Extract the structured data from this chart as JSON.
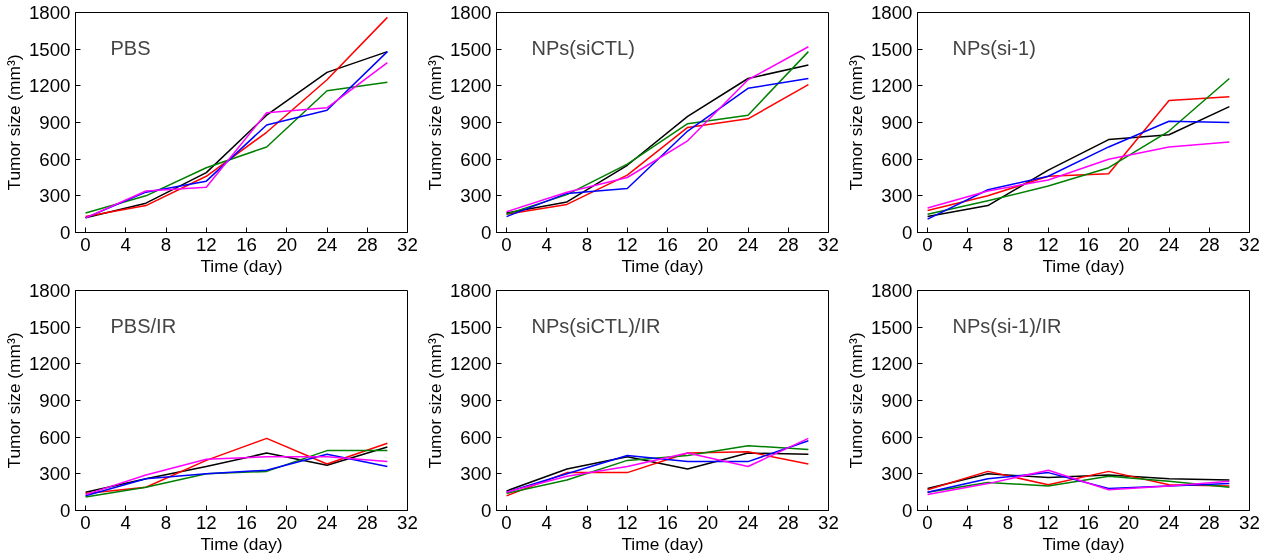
{
  "chart_data": [
    {
      "type": "line",
      "title": "PBS",
      "xlabel": "Time (day)",
      "ylabel": "Tumor size (mm³)",
      "x": [
        0,
        6,
        12,
        18,
        24,
        30
      ],
      "xlim": [
        -1,
        32
      ],
      "xticks": [
        0,
        4,
        8,
        12,
        16,
        20,
        24,
        28,
        32
      ],
      "ylim": [
        0,
        1800
      ],
      "yticks": [
        0,
        300,
        600,
        900,
        1200,
        1500,
        1800
      ],
      "grid": false,
      "series": [
        {
          "color": "#000000",
          "values": [
            120,
            240,
            490,
            960,
            1310,
            1480
          ]
        },
        {
          "color": "#ff0000",
          "values": [
            130,
            220,
            460,
            820,
            1250,
            1760
          ]
        },
        {
          "color": "#008000",
          "values": [
            160,
            300,
            530,
            700,
            1160,
            1230
          ]
        },
        {
          "color": "#0000ff",
          "values": [
            120,
            330,
            420,
            880,
            1000,
            1480
          ]
        },
        {
          "color": "#ff00ff",
          "values": [
            120,
            340,
            370,
            980,
            1020,
            1390
          ]
        }
      ]
    },
    {
      "type": "line",
      "title": "NPs(siCTL)",
      "xlabel": "Time (day)",
      "ylabel": "Tumor size (mm³)",
      "x": [
        0,
        6,
        12,
        18,
        24,
        30
      ],
      "xlim": [
        -1,
        32
      ],
      "xticks": [
        0,
        4,
        8,
        12,
        16,
        20,
        24,
        28,
        32
      ],
      "ylim": [
        0,
        1800
      ],
      "yticks": [
        0,
        300,
        600,
        900,
        1200,
        1500,
        1800
      ],
      "grid": false,
      "series": [
        {
          "color": "#000000",
          "values": [
            160,
            250,
            550,
            950,
            1260,
            1370
          ]
        },
        {
          "color": "#ff0000",
          "values": [
            150,
            230,
            470,
            860,
            930,
            1210
          ]
        },
        {
          "color": "#008000",
          "values": [
            150,
            310,
            560,
            890,
            960,
            1480
          ]
        },
        {
          "color": "#0000ff",
          "values": [
            130,
            320,
            360,
            830,
            1180,
            1260
          ]
        },
        {
          "color": "#ff00ff",
          "values": [
            170,
            330,
            450,
            750,
            1250,
            1520
          ]
        }
      ]
    },
    {
      "type": "line",
      "title": "NPs(si-1)",
      "xlabel": "Time (day)",
      "ylabel": "Tumor size (mm³)",
      "x": [
        0,
        6,
        12,
        18,
        24,
        30
      ],
      "xlim": [
        -1,
        32
      ],
      "xticks": [
        0,
        4,
        8,
        12,
        16,
        20,
        24,
        28,
        32
      ],
      "ylim": [
        0,
        1800
      ],
      "yticks": [
        0,
        300,
        600,
        900,
        1200,
        1500,
        1800
      ],
      "grid": false,
      "series": [
        {
          "color": "#000000",
          "values": [
            130,
            220,
            510,
            760,
            800,
            1030
          ]
        },
        {
          "color": "#ff0000",
          "values": [
            180,
            300,
            460,
            480,
            1080,
            1110
          ]
        },
        {
          "color": "#008000",
          "values": [
            150,
            260,
            380,
            530,
            830,
            1260
          ]
        },
        {
          "color": "#0000ff",
          "values": [
            110,
            350,
            460,
            700,
            910,
            900
          ]
        },
        {
          "color": "#ff00ff",
          "values": [
            200,
            340,
            430,
            600,
            700,
            740
          ]
        }
      ]
    },
    {
      "type": "line",
      "title": "PBS/IR",
      "xlabel": "Time (day)",
      "ylabel": "Tumor size (mm³)",
      "x": [
        0,
        6,
        12,
        18,
        24,
        30
      ],
      "xlim": [
        -1,
        32
      ],
      "xticks": [
        0,
        4,
        8,
        12,
        16,
        20,
        24,
        28,
        32
      ],
      "ylim": [
        0,
        1800
      ],
      "yticks": [
        0,
        300,
        600,
        900,
        1200,
        1500,
        1800
      ],
      "grid": false,
      "series": [
        {
          "color": "#000000",
          "values": [
            150,
            260,
            360,
            470,
            370,
            520
          ]
        },
        {
          "color": "#ff0000",
          "values": [
            140,
            190,
            410,
            590,
            380,
            550
          ]
        },
        {
          "color": "#008000",
          "values": [
            110,
            190,
            300,
            320,
            490,
            490
          ]
        },
        {
          "color": "#0000ff",
          "values": [
            120,
            260,
            300,
            330,
            460,
            360
          ]
        },
        {
          "color": "#ff00ff",
          "values": [
            130,
            290,
            420,
            440,
            440,
            400
          ]
        }
      ]
    },
    {
      "type": "line",
      "title": "NPs(siCTL)/IR",
      "xlabel": "Time (day)",
      "ylabel": "Tumor size (mm³)",
      "x": [
        0,
        6,
        12,
        18,
        24,
        30
      ],
      "xlim": [
        -1,
        32
      ],
      "xticks": [
        0,
        4,
        8,
        12,
        16,
        20,
        24,
        28,
        32
      ],
      "ylim": [
        0,
        1800
      ],
      "yticks": [
        0,
        300,
        600,
        900,
        1200,
        1500,
        1800
      ],
      "grid": false,
      "series": [
        {
          "color": "#000000",
          "values": [
            160,
            340,
            440,
            340,
            470,
            460
          ]
        },
        {
          "color": "#ff0000",
          "values": [
            120,
            310,
            310,
            470,
            480,
            380
          ]
        },
        {
          "color": "#008000",
          "values": [
            140,
            250,
            410,
            450,
            530,
            500
          ]
        },
        {
          "color": "#0000ff",
          "values": [
            150,
            300,
            450,
            400,
            400,
            570
          ]
        },
        {
          "color": "#ff00ff",
          "values": [
            150,
            280,
            360,
            470,
            360,
            590
          ]
        }
      ]
    },
    {
      "type": "line",
      "title": "NPs(si-1)/IR",
      "xlabel": "Time (day)",
      "ylabel": "Tumor size (mm³)",
      "x": [
        0,
        6,
        12,
        18,
        24,
        30
      ],
      "xlim": [
        -1,
        32
      ],
      "xticks": [
        0,
        4,
        8,
        12,
        16,
        20,
        24,
        28,
        32
      ],
      "ylim": [
        0,
        1800
      ],
      "yticks": [
        0,
        300,
        600,
        900,
        1200,
        1500,
        1800
      ],
      "grid": false,
      "series": [
        {
          "color": "#000000",
          "values": [
            180,
            300,
            270,
            290,
            260,
            250
          ]
        },
        {
          "color": "#ff0000",
          "values": [
            170,
            320,
            210,
            320,
            210,
            200
          ]
        },
        {
          "color": "#008000",
          "values": [
            150,
            230,
            200,
            280,
            240,
            190
          ]
        },
        {
          "color": "#0000ff",
          "values": [
            150,
            260,
            310,
            180,
            200,
            220
          ]
        },
        {
          "color": "#ff00ff",
          "values": [
            130,
            220,
            330,
            170,
            200,
            240
          ]
        }
      ]
    }
  ]
}
